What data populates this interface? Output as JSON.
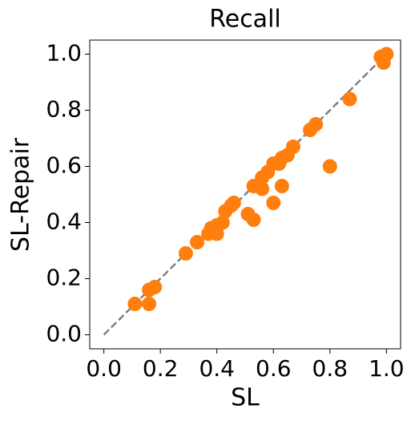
{
  "chart_data": {
    "type": "scatter",
    "title": "Recall",
    "x_label": "SL",
    "y_label": "SL-Repair",
    "xlim": [
      -0.05,
      1.05
    ],
    "ylim": [
      -0.05,
      1.05
    ],
    "xticks": [
      {
        "value": 0,
        "label": "0.0"
      },
      0.2,
      0.4,
      0.6,
      0.8,
      {
        "value": 1,
        "label": "1.0"
      }
    ],
    "yticks": [
      {
        "value": 0,
        "label": "0.0"
      },
      0.2,
      0.4,
      0.6,
      0.8,
      {
        "value": 1,
        "label": "1.0"
      }
    ],
    "reference_line": {
      "x": [
        0,
        1
      ],
      "y": [
        0,
        1
      ],
      "color": "#808080",
      "dashed": true
    },
    "series": [
      {
        "color": "#ff7f0e",
        "x": [
          0.11,
          0.16,
          0.16,
          0.18,
          0.29,
          0.33,
          0.37,
          0.38,
          0.4,
          0.4,
          0.42,
          0.43,
          0.45,
          0.46,
          0.51,
          0.53,
          0.53,
          0.56,
          0.56,
          0.58,
          0.6,
          0.6,
          0.62,
          0.63,
          0.63,
          0.65,
          0.67,
          0.73,
          0.75,
          0.8,
          0.87,
          0.98,
          0.99,
          1.0
        ],
        "values": [
          0.11,
          0.11,
          0.16,
          0.17,
          0.29,
          0.33,
          0.36,
          0.38,
          0.39,
          0.36,
          0.4,
          0.44,
          0.46,
          0.47,
          0.43,
          0.41,
          0.53,
          0.52,
          0.56,
          0.58,
          0.47,
          0.61,
          0.61,
          0.53,
          0.63,
          0.64,
          0.67,
          0.73,
          0.75,
          0.6,
          0.84,
          0.99,
          0.97,
          1.0
        ]
      }
    ]
  }
}
